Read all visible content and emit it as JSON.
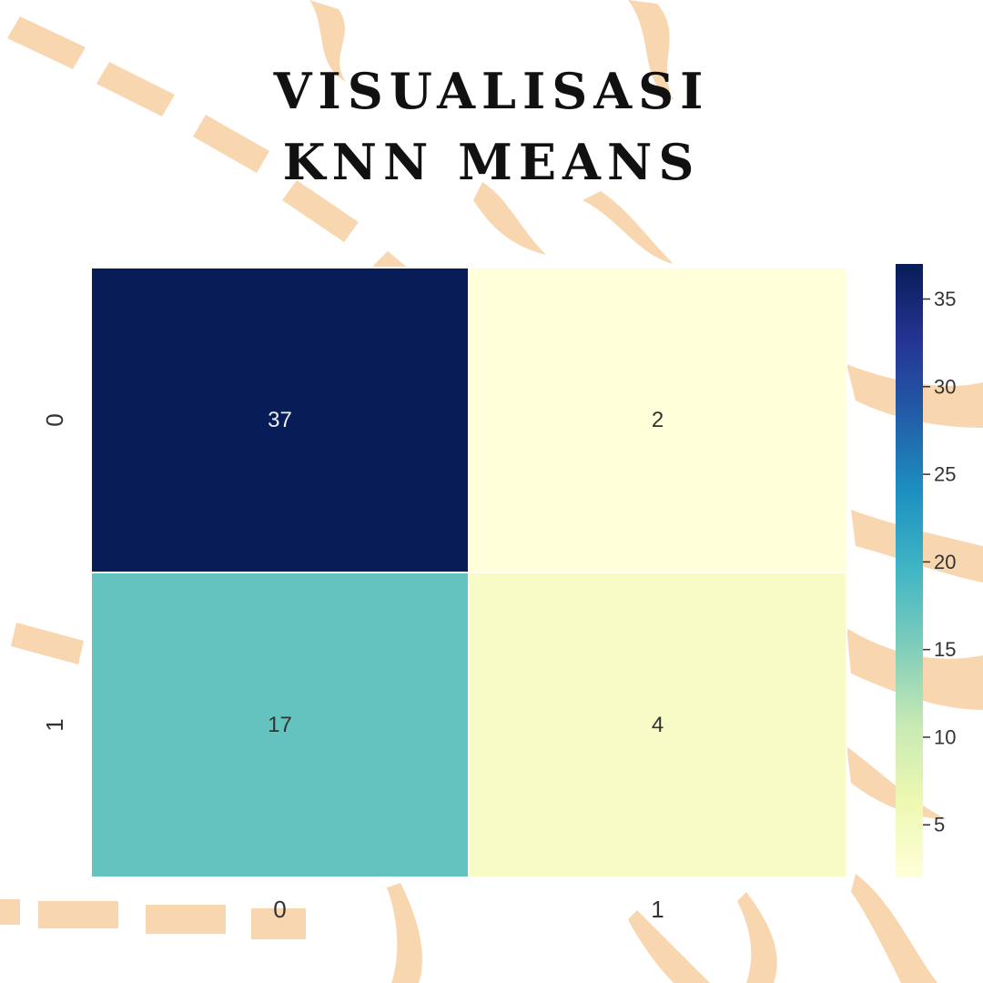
{
  "title": {
    "line1": "VISUALISASI",
    "line2": "KNN MEANS"
  },
  "colors": {
    "background": "#ffffff",
    "decoration": "#f8d7b0",
    "text": "#111111",
    "cell_border": "#ffffff"
  },
  "chart_data": {
    "type": "heatmap",
    "title": "",
    "xlabel": "",
    "ylabel": "",
    "x_categories": [
      "0",
      "1"
    ],
    "y_categories": [
      "0",
      "1"
    ],
    "values": [
      [
        37,
        2
      ],
      [
        17,
        4
      ]
    ],
    "annotations": true,
    "colormap": "YlGnBu",
    "colorbar": {
      "range": [
        2,
        37
      ],
      "ticks": [
        5,
        10,
        15,
        20,
        25,
        30,
        35
      ],
      "placement": "right"
    }
  }
}
